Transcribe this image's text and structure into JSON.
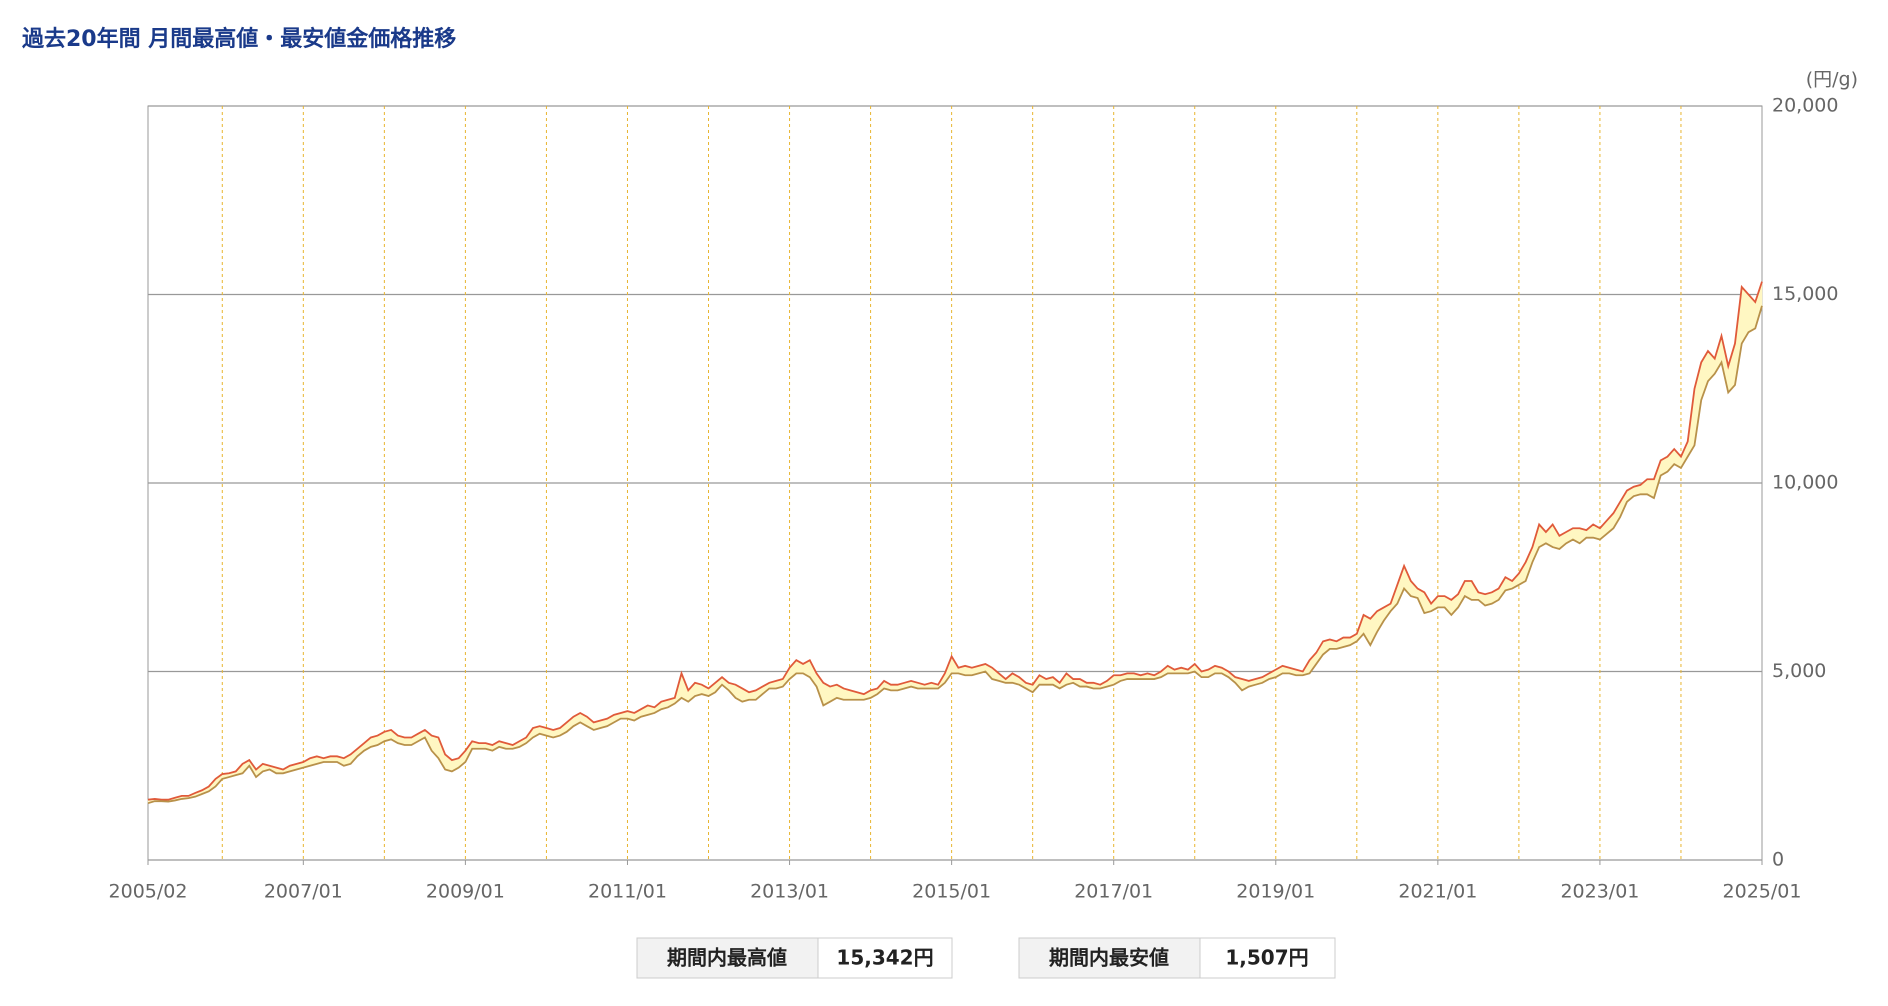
{
  "chart_data": {
    "type": "line-range",
    "title": "過去20年間 月間最高値・最安値金価格推移",
    "y_unit": "(円/g)",
    "categories": [
      "2005/02",
      "2005/03",
      "2005/04",
      "2005/05",
      "2005/06",
      "2005/07",
      "2005/08",
      "2005/09",
      "2005/10",
      "2005/11",
      "2005/12",
      "2006/01",
      "2006/02",
      "2006/03",
      "2006/04",
      "2006/05",
      "2006/06",
      "2006/07",
      "2006/08",
      "2006/09",
      "2006/10",
      "2006/11",
      "2006/12",
      "2007/01",
      "2007/02",
      "2007/03",
      "2007/04",
      "2007/05",
      "2007/06",
      "2007/07",
      "2007/08",
      "2007/09",
      "2007/10",
      "2007/11",
      "2007/12",
      "2008/01",
      "2008/02",
      "2008/03",
      "2008/04",
      "2008/05",
      "2008/06",
      "2008/07",
      "2008/08",
      "2008/09",
      "2008/10",
      "2008/11",
      "2008/12",
      "2009/01",
      "2009/02",
      "2009/03",
      "2009/04",
      "2009/05",
      "2009/06",
      "2009/07",
      "2009/08",
      "2009/09",
      "2009/10",
      "2009/11",
      "2009/12",
      "2010/01",
      "2010/02",
      "2010/03",
      "2010/04",
      "2010/05",
      "2010/06",
      "2010/07",
      "2010/08",
      "2010/09",
      "2010/10",
      "2010/11",
      "2010/12",
      "2011/01",
      "2011/02",
      "2011/03",
      "2011/04",
      "2011/05",
      "2011/06",
      "2011/07",
      "2011/08",
      "2011/09",
      "2011/10",
      "2011/11",
      "2011/12",
      "2012/01",
      "2012/02",
      "2012/03",
      "2012/04",
      "2012/05",
      "2012/06",
      "2012/07",
      "2012/08",
      "2012/09",
      "2012/10",
      "2012/11",
      "2012/12",
      "2013/01",
      "2013/02",
      "2013/03",
      "2013/04",
      "2013/05",
      "2013/06",
      "2013/07",
      "2013/08",
      "2013/09",
      "2013/10",
      "2013/11",
      "2013/12",
      "2014/01",
      "2014/02",
      "2014/03",
      "2014/04",
      "2014/05",
      "2014/06",
      "2014/07",
      "2014/08",
      "2014/09",
      "2014/10",
      "2014/11",
      "2014/12",
      "2015/01",
      "2015/02",
      "2015/03",
      "2015/04",
      "2015/05",
      "2015/06",
      "2015/07",
      "2015/08",
      "2015/09",
      "2015/10",
      "2015/11",
      "2015/12",
      "2016/01",
      "2016/02",
      "2016/03",
      "2016/04",
      "2016/05",
      "2016/06",
      "2016/07",
      "2016/08",
      "2016/09",
      "2016/10",
      "2016/11",
      "2016/12",
      "2017/01",
      "2017/02",
      "2017/03",
      "2017/04",
      "2017/05",
      "2017/06",
      "2017/07",
      "2017/08",
      "2017/09",
      "2017/10",
      "2017/11",
      "2017/12",
      "2018/01",
      "2018/02",
      "2018/03",
      "2018/04",
      "2018/05",
      "2018/06",
      "2018/07",
      "2018/08",
      "2018/09",
      "2018/10",
      "2018/11",
      "2018/12",
      "2019/01",
      "2019/02",
      "2019/03",
      "2019/04",
      "2019/05",
      "2019/06",
      "2019/07",
      "2019/08",
      "2019/09",
      "2019/10",
      "2019/11",
      "2019/12",
      "2020/01",
      "2020/02",
      "2020/03",
      "2020/04",
      "2020/05",
      "2020/06",
      "2020/07",
      "2020/08",
      "2020/09",
      "2020/10",
      "2020/11",
      "2020/12",
      "2021/01",
      "2021/02",
      "2021/03",
      "2021/04",
      "2021/05",
      "2021/06",
      "2021/07",
      "2021/08",
      "2021/09",
      "2021/10",
      "2021/11",
      "2021/12",
      "2022/01",
      "2022/02",
      "2022/03",
      "2022/04",
      "2022/05",
      "2022/06",
      "2022/07",
      "2022/08",
      "2022/09",
      "2022/10",
      "2022/11",
      "2022/12",
      "2023/01",
      "2023/02",
      "2023/03",
      "2023/04",
      "2023/05",
      "2023/06",
      "2023/07",
      "2023/08",
      "2023/09",
      "2023/10",
      "2023/11",
      "2023/12",
      "2024/01",
      "2024/02",
      "2024/03",
      "2024/04",
      "2024/05",
      "2024/06",
      "2024/07",
      "2024/08",
      "2024/09",
      "2024/10",
      "2024/11",
      "2024/12",
      "2025/01"
    ],
    "series": [
      {
        "color": "#e05a3a",
        "values": [
          1600,
          1620,
          1600,
          1600,
          1650,
          1700,
          1700,
          1780,
          1850,
          1950,
          2150,
          2280,
          2300,
          2350,
          2550,
          2650,
          2400,
          2550,
          2500,
          2450,
          2400,
          2500,
          2550,
          2600,
          2700,
          2750,
          2700,
          2750,
          2750,
          2700,
          2800,
          2950,
          3100,
          3250,
          3300,
          3400,
          3450,
          3300,
          3250,
          3250,
          3350,
          3450,
          3300,
          3250,
          2800,
          2650,
          2700,
          2900,
          3150,
          3100,
          3100,
          3050,
          3150,
          3100,
          3050,
          3150,
          3250,
          3500,
          3550,
          3500,
          3450,
          3500,
          3650,
          3800,
          3900,
          3800,
          3650,
          3700,
          3750,
          3850,
          3900,
          3950,
          3900,
          4000,
          4100,
          4050,
          4200,
          4250,
          4300,
          4950,
          4500,
          4700,
          4650,
          4550,
          4700,
          4850,
          4700,
          4650,
          4550,
          4450,
          4500,
          4600,
          4700,
          4750,
          4800,
          5100,
          5300,
          5200,
          5300,
          4950,
          4700,
          4600,
          4650,
          4550,
          4500,
          4450,
          4400,
          4500,
          4550,
          4750,
          4650,
          4650,
          4700,
          4750,
          4700,
          4650,
          4700,
          4650,
          4950,
          5400,
          5100,
          5150,
          5100,
          5150,
          5200,
          5100,
          4950,
          4800,
          4950,
          4850,
          4700,
          4650,
          4900,
          4800,
          4850,
          4700,
          4950,
          4800,
          4800,
          4700,
          4700,
          4650,
          4750,
          4900,
          4900,
          4950,
          4950,
          4900,
          4950,
          4900,
          5000,
          5150,
          5050,
          5100,
          5050,
          5200,
          5000,
          5050,
          5150,
          5100,
          5000,
          4850,
          4800,
          4750,
          4800,
          4850,
          4950,
          5050,
          5150,
          5100,
          5050,
          5000,
          5300,
          5500,
          5800,
          5850,
          5800,
          5900,
          5900,
          6000,
          6500,
          6400,
          6600,
          6700,
          6800,
          7300,
          7800,
          7400,
          7200,
          7100,
          6800,
          7000,
          7000,
          6900,
          7050,
          7400,
          7400,
          7100,
          7050,
          7100,
          7200,
          7500,
          7400,
          7600,
          7900,
          8300,
          8900,
          8700,
          8900,
          8600,
          8700,
          8800,
          8800,
          8750,
          8900,
          8800,
          9000,
          9200,
          9500,
          9800,
          9900,
          9950,
          10100,
          10100,
          10600,
          10700,
          10900,
          10700,
          11100,
          12500,
          13200,
          13500,
          13300,
          13900,
          13100,
          13700,
          15200,
          15000,
          14800,
          15342
        ]
      },
      {
        "color": "#b8914a",
        "values": [
          1507,
          1560,
          1560,
          1550,
          1580,
          1620,
          1640,
          1680,
          1750,
          1820,
          1950,
          2150,
          2200,
          2250,
          2300,
          2500,
          2200,
          2350,
          2400,
          2300,
          2300,
          2350,
          2400,
          2450,
          2500,
          2550,
          2600,
          2600,
          2600,
          2500,
          2550,
          2750,
          2900,
          3000,
          3050,
          3150,
          3200,
          3100,
          3050,
          3050,
          3150,
          3250,
          2900,
          2700,
          2400,
          2350,
          2450,
          2600,
          2950,
          2950,
          2950,
          2900,
          3000,
          2950,
          2950,
          3000,
          3100,
          3250,
          3350,
          3300,
          3250,
          3300,
          3400,
          3550,
          3650,
          3550,
          3450,
          3500,
          3550,
          3650,
          3750,
          3750,
          3700,
          3800,
          3850,
          3900,
          4000,
          4050,
          4150,
          4300,
          4200,
          4350,
          4400,
          4350,
          4450,
          4650,
          4500,
          4300,
          4200,
          4250,
          4250,
          4400,
          4550,
          4550,
          4600,
          4800,
          4950,
          4950,
          4850,
          4600,
          4100,
          4200,
          4300,
          4250,
          4250,
          4250,
          4250,
          4300,
          4400,
          4550,
          4500,
          4500,
          4550,
          4600,
          4550,
          4550,
          4550,
          4550,
          4700,
          4950,
          4950,
          4900,
          4900,
          4950,
          5000,
          4800,
          4750,
          4700,
          4700,
          4650,
          4550,
          4450,
          4650,
          4650,
          4650,
          4550,
          4650,
          4700,
          4600,
          4600,
          4550,
          4550,
          4600,
          4650,
          4750,
          4800,
          4800,
          4800,
          4800,
          4800,
          4850,
          4950,
          4950,
          4950,
          4950,
          5000,
          4850,
          4850,
          4950,
          4950,
          4850,
          4700,
          4500,
          4600,
          4650,
          4700,
          4800,
          4850,
          4950,
          4950,
          4900,
          4900,
          4950,
          5200,
          5450,
          5600,
          5600,
          5650,
          5700,
          5800,
          6000,
          5700,
          6050,
          6350,
          6600,
          6800,
          7200,
          7000,
          6950,
          6550,
          6600,
          6700,
          6700,
          6500,
          6700,
          7000,
          6900,
          6900,
          6750,
          6800,
          6900,
          7150,
          7200,
          7300,
          7400,
          7900,
          8300,
          8400,
          8300,
          8250,
          8400,
          8500,
          8400,
          8550,
          8550,
          8500,
          8650,
          8800,
          9100,
          9500,
          9650,
          9700,
          9700,
          9600,
          10200,
          10300,
          10500,
          10400,
          10700,
          11000,
          12200,
          12700,
          12900,
          13200,
          12400,
          12600,
          13700,
          14000,
          14100,
          14700
        ]
      }
    ],
    "fill_color": "#fff7c2",
    "ylim": [
      0,
      20000
    ],
    "yticks": [
      0,
      {
        "value": 5000,
        "label": "5,000"
      },
      {
        "value": 10000,
        "label": "10,000"
      },
      {
        "value": 15000,
        "label": "15,000"
      },
      {
        "value": 20000,
        "label": "20,000"
      }
    ],
    "xticks": [
      "2005/02",
      "2007/01",
      "2009/01",
      "2011/01",
      "2013/01",
      "2015/01",
      "2017/01",
      "2019/01",
      "2021/01",
      "2023/01",
      "2025/01"
    ],
    "x_gridlines": [
      "2006/01",
      "2007/01",
      "2008/01",
      "2009/01",
      "2010/01",
      "2011/01",
      "2012/01",
      "2013/01",
      "2014/01",
      "2015/01",
      "2016/01",
      "2017/01",
      "2018/01",
      "2019/01",
      "2020/01",
      "2021/01",
      "2022/01",
      "2023/01",
      "2024/01"
    ],
    "summary": [
      {
        "label": "期間内最高値",
        "value": "15,342円"
      },
      {
        "label": "期間内最安値",
        "value": "1,507円"
      }
    ]
  }
}
